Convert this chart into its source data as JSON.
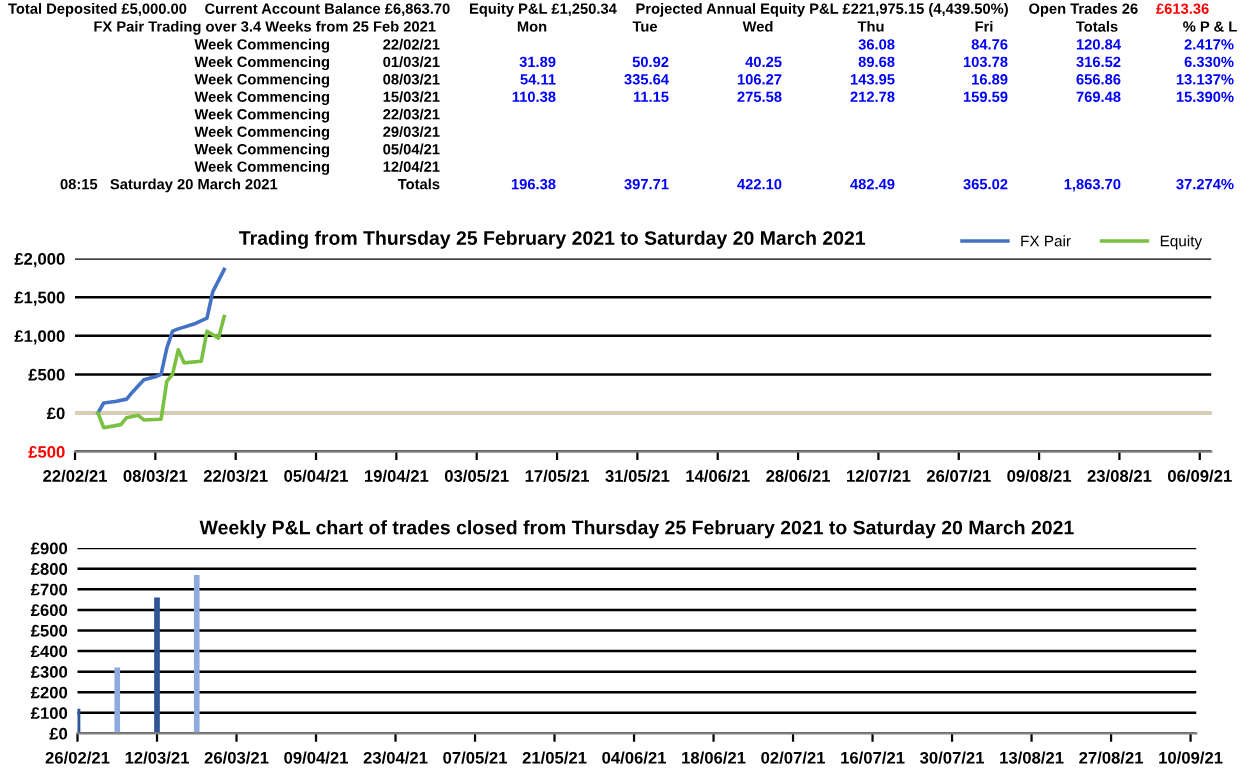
{
  "chart_data": [
    {
      "type": "other",
      "subtitle": "FX Pair Trading over 3.4 Weeks from 25 Feb 2021",
      "annotations": [
        "Total Deposited £5,000.00",
        "Current Account Balance £6,863.70",
        "Equity P&L £1,250.34",
        "Projected Annual Equity P&L £221,975.15 (4,439.50%)",
        "Open Trades 26",
        "£613.36"
      ],
      "colors": [
        "#000000",
        "#000000",
        "#000000",
        "#000000",
        "#000000",
        "#ff0000"
      ],
      "color": "#0000ff",
      "categories": [
        "Mon",
        "Tue",
        "Wed",
        "Thu",
        "Fri",
        "Totals",
        "% P & L"
      ],
      "y_categories": [
        "Week Commencing",
        "Week Commencing",
        "Week Commencing",
        "Week Commencing",
        "Week Commencing",
        "Week Commencing",
        "Week Commencing",
        "Week Commencing",
        "08:15   Saturday 20 March 2021"
      ],
      "y2_categories": [
        "22/02/21",
        "01/03/21",
        "08/03/21",
        "15/03/21",
        "22/03/21",
        "29/03/21",
        "05/04/21",
        "12/04/21",
        "Totals"
      ],
      "cell_labels": [
        [
          null,
          null,
          null,
          "36.08",
          "84.76",
          "120.84",
          "2.417%"
        ],
        [
          "31.89",
          "50.92",
          "40.25",
          "89.68",
          "103.78",
          "316.52",
          "6.330%"
        ],
        [
          "54.11",
          "335.64",
          "106.27",
          "143.95",
          "16.89",
          "656.86",
          "13.137%"
        ],
        [
          "110.38",
          "11.15",
          "275.58",
          "212.78",
          "159.59",
          "769.48",
          "15.390%"
        ],
        [
          null,
          null,
          null,
          null,
          null,
          null,
          null
        ],
        [
          null,
          null,
          null,
          null,
          null,
          null,
          null
        ],
        [
          null,
          null,
          null,
          null,
          null,
          null,
          null
        ],
        [
          null,
          null,
          null,
          null,
          null,
          null,
          null
        ],
        [
          "196.38",
          "397.71",
          "422.10",
          "482.49",
          "365.02",
          "1,863.70",
          "37.274%"
        ]
      ]
    },
    {
      "type": "line",
      "title": "Trading from Thursday 25 February 2021 to Saturday 20 March 2021",
      "series": [
        {
          "name": "FX Pair",
          "color": "#4472c4",
          "x": [
            "2021-02-26",
            "2021-02-27",
            "2021-03-01",
            "2021-03-03",
            "2021-03-04",
            "2021-03-06",
            "2021-03-08",
            "2021-03-09",
            "2021-03-10",
            "2021-03-11",
            "2021-03-12",
            "2021-03-15",
            "2021-03-17",
            "2021-03-18",
            "2021-03-20"
          ],
          "values": [
            0,
            130,
            150,
            180,
            270,
            430,
            470,
            500,
            840,
            1060,
            1090,
            1160,
            1230,
            1570,
            1860
          ]
        },
        {
          "name": "Equity",
          "color": "#7ac143",
          "x": [
            "2021-02-26",
            "2021-02-27",
            "2021-03-02",
            "2021-03-03",
            "2021-03-05",
            "2021-03-06",
            "2021-03-09",
            "2021-03-10",
            "2021-03-11",
            "2021-03-12",
            "2021-03-13",
            "2021-03-16",
            "2021-03-17",
            "2021-03-19",
            "2021-03-20"
          ],
          "values": [
            0,
            -190,
            -150,
            -60,
            -30,
            -90,
            -80,
            410,
            500,
            820,
            650,
            670,
            1060,
            970,
            1250
          ]
        }
      ],
      "xlim": [
        "2021-02-22",
        "2021-09-08"
      ],
      "xticks": [
        {
          "value": "2021-02-22",
          "label": "22/02/21"
        },
        {
          "value": "2021-03-08",
          "label": "08/03/21"
        },
        {
          "value": "2021-03-22",
          "label": "22/03/21"
        },
        {
          "value": "2021-04-05",
          "label": "05/04/21"
        },
        {
          "value": "2021-04-19",
          "label": "19/04/21"
        },
        {
          "value": "2021-05-03",
          "label": "03/05/21"
        },
        {
          "value": "2021-05-17",
          "label": "17/05/21"
        },
        {
          "value": "2021-05-31",
          "label": "31/05/21"
        },
        {
          "value": "2021-06-14",
          "label": "14/06/21"
        },
        {
          "value": "2021-06-28",
          "label": "28/06/21"
        },
        {
          "value": "2021-07-12",
          "label": "12/07/21"
        },
        {
          "value": "2021-07-26",
          "label": "26/07/21"
        },
        {
          "value": "2021-08-09",
          "label": "09/08/21"
        },
        {
          "value": "2021-08-23",
          "label": "23/08/21"
        },
        {
          "value": "2021-09-06",
          "label": "06/09/21"
        }
      ],
      "ylim": [
        -500,
        2000
      ],
      "yticks": [
        {
          "value": -500,
          "label": "£500"
        },
        {
          "value": 0,
          "label": "£0"
        },
        {
          "value": 500,
          "label": "£500"
        },
        {
          "value": 1000,
          "label": "£1,000"
        },
        {
          "value": 1500,
          "label": "£1,500"
        },
        {
          "value": 2000,
          "label": "£2,000"
        }
      ],
      "grid": "y",
      "legend": "top right",
      "marker": "none",
      "line_style": "solid"
    },
    {
      "type": "bar",
      "title": "Weekly P&L chart of trades closed from Thursday 25 February 2021 to Saturday 20 March 2021",
      "x": [
        "2021-02-26",
        "2021-03-05",
        "2021-03-12",
        "2021-03-19"
      ],
      "values": [
        120,
        320,
        660,
        770
      ],
      "colors": [
        "#2f5597",
        "#8faadc",
        "#2f5597",
        "#8faadc"
      ],
      "xlim": [
        "2021-02-26",
        "2021-09-11"
      ],
      "xticks": [
        {
          "value": "2021-02-26",
          "label": "26/02/21"
        },
        {
          "value": "2021-03-12",
          "label": "12/03/21"
        },
        {
          "value": "2021-03-26",
          "label": "26/03/21"
        },
        {
          "value": "2021-04-09",
          "label": "09/04/21"
        },
        {
          "value": "2021-04-23",
          "label": "23/04/21"
        },
        {
          "value": "2021-05-07",
          "label": "07/05/21"
        },
        {
          "value": "2021-05-21",
          "label": "21/05/21"
        },
        {
          "value": "2021-06-04",
          "label": "04/06/21"
        },
        {
          "value": "2021-06-18",
          "label": "18/06/21"
        },
        {
          "value": "2021-07-02",
          "label": "02/07/21"
        },
        {
          "value": "2021-07-16",
          "label": "16/07/21"
        },
        {
          "value": "2021-07-30",
          "label": "30/07/21"
        },
        {
          "value": "2021-08-13",
          "label": "13/08/21"
        },
        {
          "value": "2021-08-27",
          "label": "27/08/21"
        },
        {
          "value": "2021-09-10",
          "label": "10/09/21"
        }
      ],
      "ylim": [
        0,
        900
      ],
      "yticks": [
        {
          "value": 0,
          "label": "£0"
        },
        {
          "value": 100,
          "label": "£100"
        },
        {
          "value": 200,
          "label": "£200"
        },
        {
          "value": 300,
          "label": "£300"
        },
        {
          "value": 400,
          "label": "£400"
        },
        {
          "value": 500,
          "label": "£500"
        },
        {
          "value": 600,
          "label": "£600"
        },
        {
          "value": 700,
          "label": "£700"
        },
        {
          "value": 800,
          "label": "£800"
        },
        {
          "value": 900,
          "label": "£900"
        }
      ],
      "grid": "y"
    }
  ]
}
